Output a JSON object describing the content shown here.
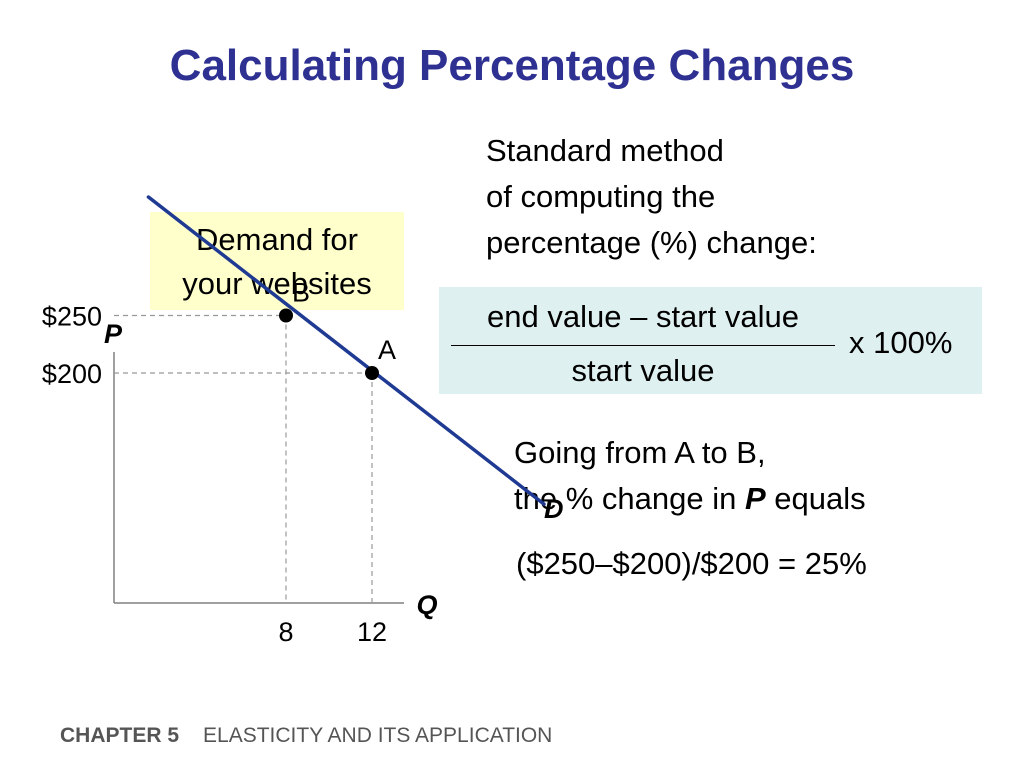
{
  "slide": {
    "title": "Calculating Percentage Changes",
    "label_box": {
      "line1": "Demand for",
      "line2": "your websites"
    },
    "method_text": {
      "line1": "Standard method",
      "line2": "of computing the",
      "line3": "percentage (%) change:"
    },
    "formula": {
      "numerator": "end value – start value",
      "denominator": "start value",
      "multiplier": "x 100%"
    },
    "going_text": {
      "line1": "Going from A to B,",
      "line2_prefix": "the % change in ",
      "line2_var": "P",
      "line2_suffix": " equals"
    },
    "result": "($250–$200)/$200 = 25%",
    "footer": {
      "chapter": "CHAPTER 5",
      "course": "ELASTICITY AND ITS APPLICATION"
    },
    "colors": {
      "title": "#2e3192",
      "demand_line": "#1f3a93",
      "label_box_bg": "#ffffcc",
      "formula_box_bg": "#dff0f1"
    }
  },
  "chart_data": {
    "type": "line",
    "xlabel": "Q",
    "ylabel": "P",
    "xlim": [
      0,
      22
    ],
    "ylim": [
      0,
      400
    ],
    "curve_label": "D",
    "demand_curve": [
      {
        "x": 1.6,
        "y": 353
      },
      {
        "x": 20.0,
        "y": 86
      }
    ],
    "points": [
      {
        "label": "B",
        "x": 8,
        "y": 250
      },
      {
        "label": "A",
        "x": 12,
        "y": 200
      }
    ],
    "x_ticks": [
      {
        "value": 8,
        "label": "8"
      },
      {
        "value": 12,
        "label": "12"
      }
    ],
    "y_ticks": [
      {
        "value": 250,
        "label": "$250"
      },
      {
        "value": 200,
        "label": "$200"
      }
    ],
    "grid": false,
    "guide_lines": "dashed"
  }
}
